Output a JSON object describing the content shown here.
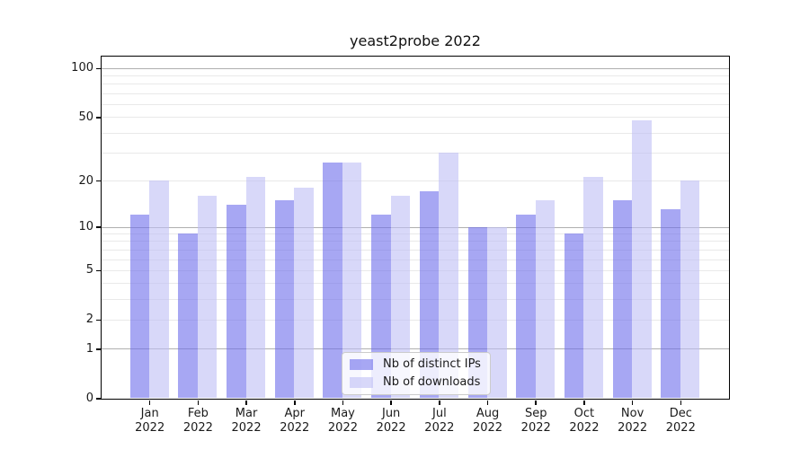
{
  "figure": {
    "background": "#ffffff"
  },
  "chart_data": {
    "type": "bar",
    "title": "yeast2probe 2022",
    "x_tick_months": [
      "Jan",
      "Feb",
      "Mar",
      "Apr",
      "May",
      "Jun",
      "Jul",
      "Aug",
      "Sep",
      "Oct",
      "Nov",
      "Dec"
    ],
    "x_tick_year": "2022",
    "series": [
      {
        "name": "Nb of distinct IPs",
        "color": "rgba(108,108,235,0.6)",
        "values": [
          12,
          9,
          14,
          15,
          26,
          12,
          17,
          10,
          12,
          9,
          15,
          13
        ]
      },
      {
        "name": "Nb of downloads",
        "color": "rgba(190,190,245,0.6)",
        "values": [
          20,
          16,
          21,
          18,
          26,
          16,
          30,
          10,
          15,
          21,
          48,
          20
        ]
      }
    ],
    "yscale": "log1p",
    "ylim": [
      0,
      119
    ],
    "y_tick_labels": [
      "100",
      "50",
      "20",
      "10",
      "5",
      "2",
      "1",
      "0"
    ],
    "y_tick_values": [
      100,
      50,
      20,
      10,
      5,
      2,
      1,
      0
    ],
    "grid": {
      "dark_lines_at": [
        1,
        10,
        100
      ],
      "light_lines_at": [
        2,
        3,
        4,
        5,
        6,
        7,
        8,
        9,
        20,
        30,
        40,
        50,
        60,
        70,
        80,
        90
      ],
      "dark_color": "#b0b0b0",
      "light_color": "#e9e9e9"
    },
    "legend": {
      "position": "lower center inside plot"
    }
  }
}
